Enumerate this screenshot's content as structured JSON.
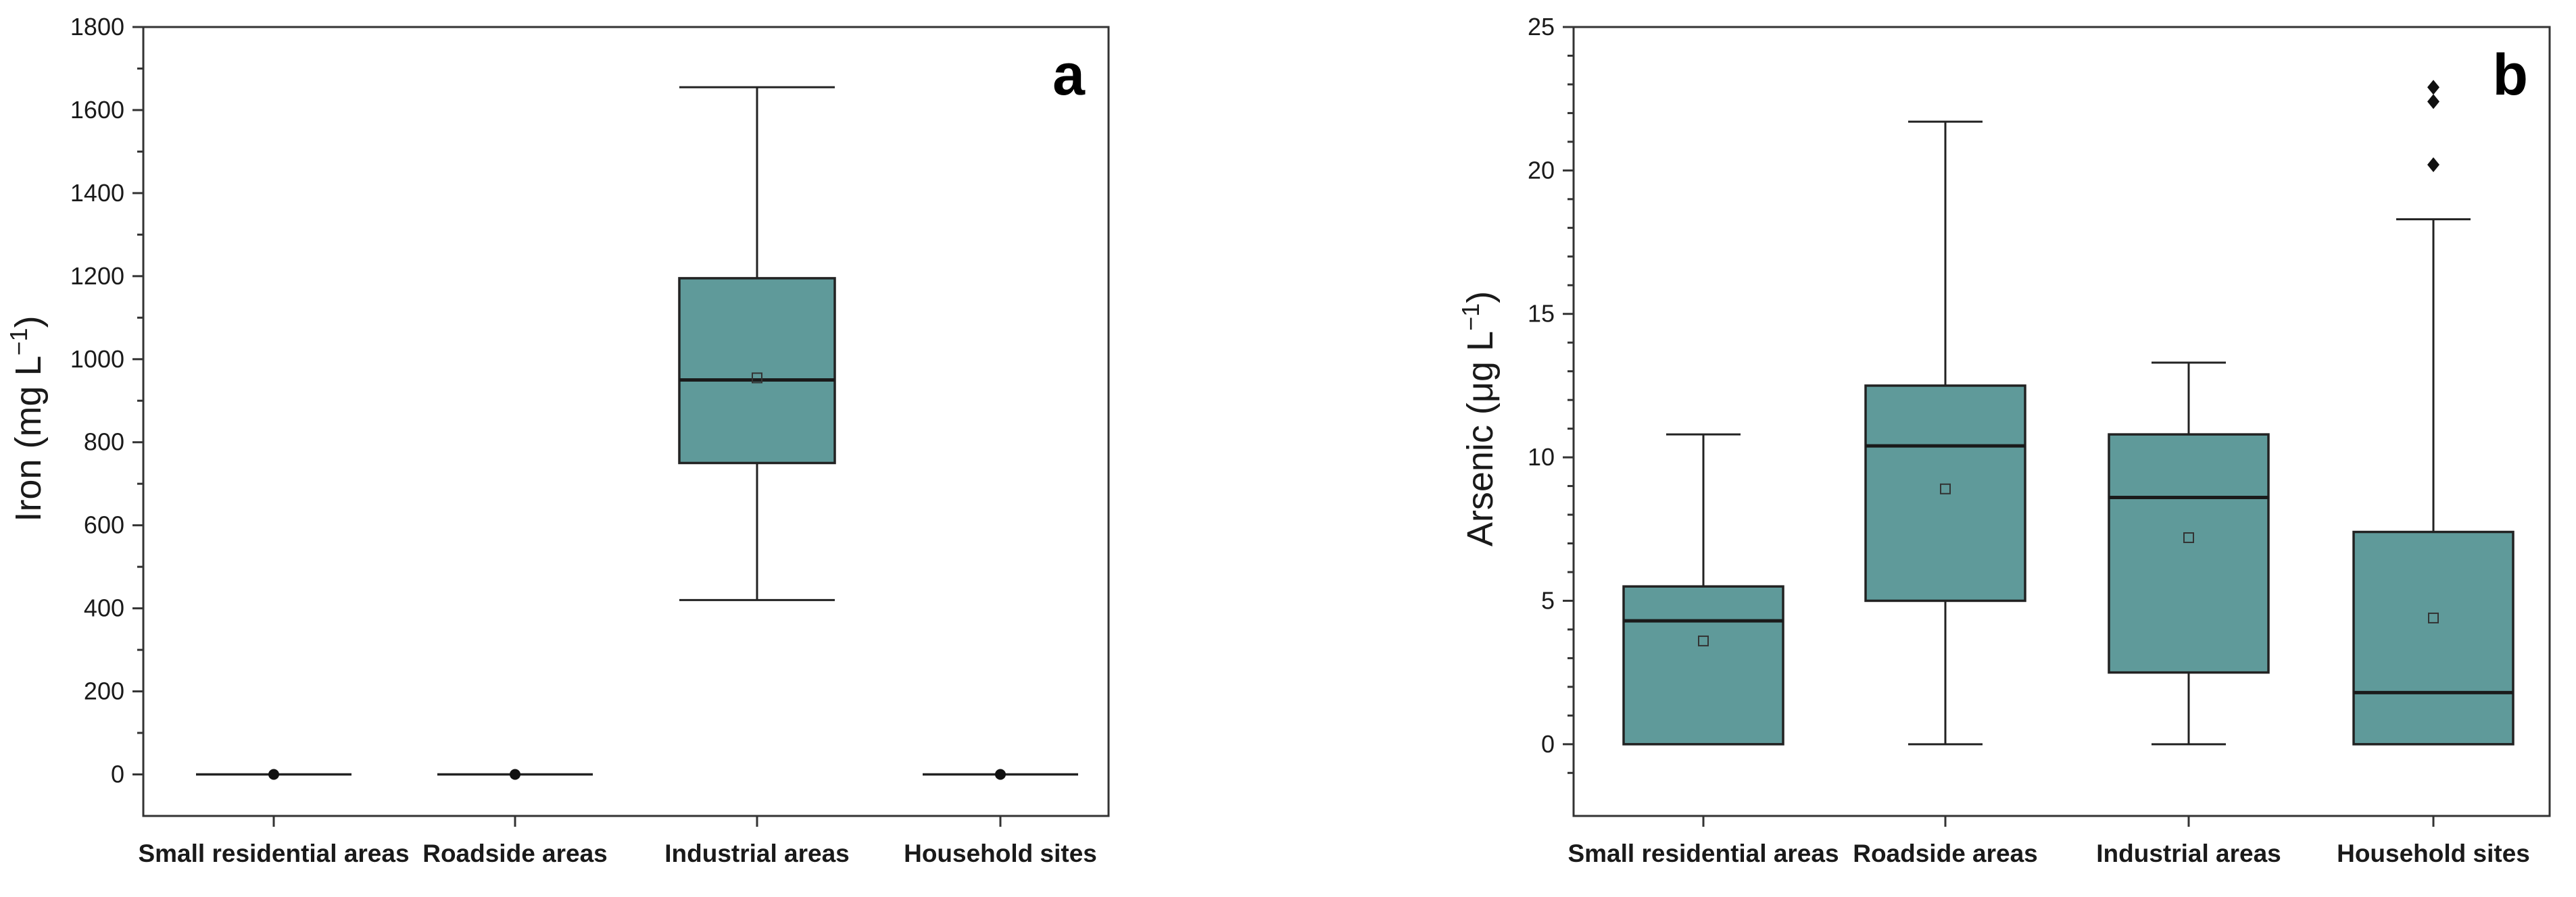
{
  "chart_data": [
    {
      "type": "box",
      "panel_label": "a",
      "ylabel_main": "Iron (mg L",
      "ylabel_sup": "−1",
      "ylabel_tail": ")",
      "ylim": [
        -100,
        1800
      ],
      "yticks": [
        0,
        200,
        400,
        600,
        800,
        1000,
        1200,
        1400,
        1600,
        1800
      ],
      "categories": [
        "Small residential areas",
        "Roadside areas",
        "Industrial areas",
        "Household sites"
      ],
      "boxes": [
        {
          "whisker_low": 0,
          "q1": 0,
          "median": 0,
          "q3": 0,
          "whisker_high": 0,
          "mean": 0,
          "outliers": []
        },
        {
          "whisker_low": 0,
          "q1": 0,
          "median": 0,
          "q3": 0,
          "whisker_high": 0,
          "mean": 0,
          "outliers": []
        },
        {
          "whisker_low": 420,
          "q1": 750,
          "median": 950,
          "q3": 1195,
          "whisker_high": 1655,
          "mean": 955,
          "outliers": []
        },
        {
          "whisker_low": 0,
          "q1": 0,
          "median": 0,
          "q3": 0,
          "whisker_high": 0,
          "mean": 0,
          "outliers": []
        }
      ]
    },
    {
      "type": "box",
      "panel_label": "b",
      "ylabel_main": "Arsenic (μg L",
      "ylabel_sup": "−1",
      "ylabel_tail": ")",
      "ylim": [
        -2.5,
        25
      ],
      "yticks": [
        0,
        5,
        10,
        15,
        20,
        25
      ],
      "categories": [
        "Small residential areas",
        "Roadside areas",
        "Industrial areas",
        "Household sites"
      ],
      "boxes": [
        {
          "whisker_low": 0,
          "q1": 0,
          "median": 4.3,
          "q3": 5.5,
          "whisker_high": 10.8,
          "mean": 3.6,
          "outliers": []
        },
        {
          "whisker_low": 0,
          "q1": 5.0,
          "median": 10.4,
          "q3": 12.5,
          "whisker_high": 21.7,
          "mean": 8.9,
          "outliers": []
        },
        {
          "whisker_low": 0,
          "q1": 2.5,
          "median": 8.6,
          "q3": 10.8,
          "whisker_high": 13.3,
          "mean": 7.2,
          "outliers": []
        },
        {
          "whisker_low": 0,
          "q1": 0,
          "median": 1.8,
          "q3": 7.4,
          "whisker_high": 18.3,
          "mean": 4.4,
          "outliers": [
            20.2,
            22.4,
            22.9
          ]
        }
      ]
    }
  ],
  "colors": {
    "box_fill": "#5f9a9a",
    "axis": "#333333",
    "text": "#1a1a1a"
  }
}
